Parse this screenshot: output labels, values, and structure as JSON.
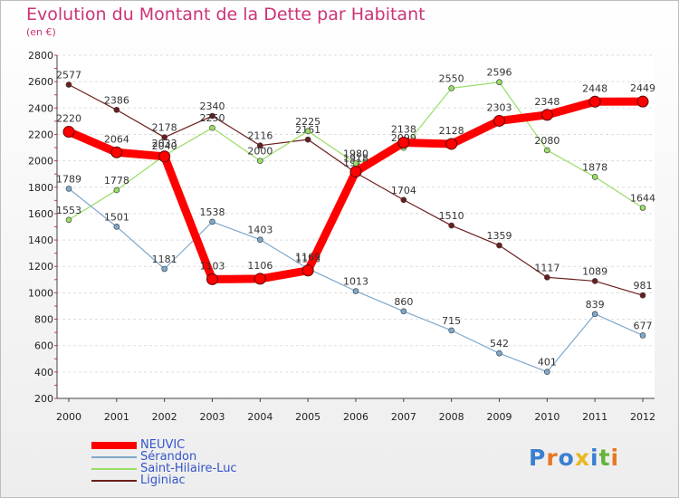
{
  "chart_data": {
    "type": "line",
    "title": "Evolution du Montant de la Dette par Habitant",
    "subtitle": "(en €)",
    "x": [
      "2000",
      "2001",
      "2002",
      "2003",
      "2004",
      "2005",
      "2006",
      "2007",
      "2008",
      "2009",
      "2010",
      "2011",
      "2012"
    ],
    "ylim": [
      200,
      2800
    ],
    "yticks": [
      200,
      400,
      600,
      800,
      1000,
      1200,
      1400,
      1600,
      1800,
      2000,
      2200,
      2400,
      2600,
      2800
    ],
    "grid": "horizontal",
    "legend_placement": "bottom-left",
    "series": [
      {
        "name": "Liginiac",
        "color": "#6b1e1e",
        "values": [
          2577,
          2386,
          2178,
          2340,
          2116,
          2161,
          1910,
          1704,
          1510,
          1359,
          1117,
          1089,
          981
        ]
      },
      {
        "name": "Saint-Hilaire-Luc",
        "color": "#99dd66",
        "values": [
          1553,
          1778,
          2040,
          2250,
          2000,
          2225,
          1980,
          2099,
          2550,
          2596,
          2080,
          1878,
          1644
        ]
      },
      {
        "name": "Sérandon",
        "color": "#7fa8cc",
        "values": [
          1789,
          1501,
          1181,
          1538,
          1403,
          1183,
          1013,
          860,
          715,
          542,
          401,
          839,
          677
        ]
      },
      {
        "name": "NEUVIC",
        "color": "#ff0000",
        "values": [
          2220,
          2064,
          2033,
          1103,
          1106,
          1169,
          1918,
          2138,
          2128,
          2303,
          2348,
          2448,
          2449
        ]
      }
    ],
    "data_labels": [
      [
        "2577",
        "2386",
        "2178",
        "2340",
        "2116",
        "2161",
        "1910",
        "1704",
        "1510",
        "1359",
        "1117",
        "1089",
        "981"
      ],
      [
        "1553",
        "1778",
        "2040",
        "2250",
        "2000",
        "2225",
        "1980",
        "2099",
        "2550",
        "2596",
        "2080",
        "1878",
        "1644"
      ],
      [
        "1789",
        "1501",
        "1181",
        "1538",
        "1403",
        "1183",
        "1013",
        "860",
        "715",
        "542",
        "401",
        "839",
        "677"
      ],
      [
        "2220",
        "2064",
        "2033",
        "1103",
        "1106",
        "1169",
        "1918",
        "2138",
        "2128",
        "2303",
        "2348",
        "2448",
        "2449"
      ]
    ]
  },
  "legend": [
    {
      "label": "NEUVIC",
      "color": "#ff0000"
    },
    {
      "label": "Sérandon",
      "color": "#7fa8cc"
    },
    {
      "label": "Saint-Hilaire-Luc",
      "color": "#99dd66"
    },
    {
      "label": "Liginiac",
      "color": "#6b1e1e"
    }
  ],
  "logo": {
    "letters": [
      "P",
      "r",
      "o",
      "x",
      "i",
      "t",
      "i"
    ],
    "colors": [
      "#3a7fd0",
      "#e87722",
      "#3a7fd0",
      "#e8b820",
      "#3a7fd0",
      "#66b33a",
      "#e87722"
    ]
  }
}
